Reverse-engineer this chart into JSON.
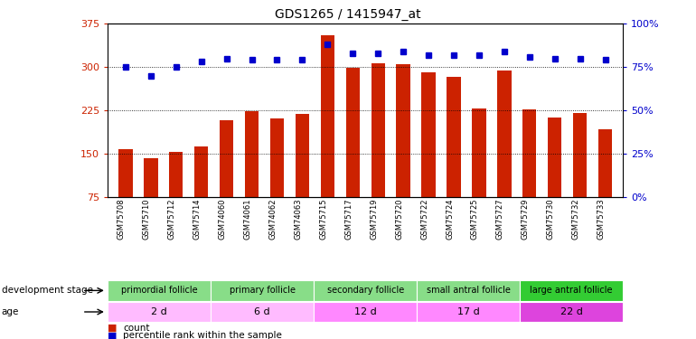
{
  "title": "GDS1265 / 1415947_at",
  "samples": [
    "GSM75708",
    "GSM75710",
    "GSM75712",
    "GSM75714",
    "GSM74060",
    "GSM74061",
    "GSM74062",
    "GSM74063",
    "GSM75715",
    "GSM75717",
    "GSM75719",
    "GSM75720",
    "GSM75722",
    "GSM75724",
    "GSM75725",
    "GSM75727",
    "GSM75729",
    "GSM75730",
    "GSM75732",
    "GSM75733"
  ],
  "counts": [
    157,
    142,
    153,
    162,
    207,
    223,
    210,
    218,
    355,
    299,
    307,
    305,
    291,
    283,
    228,
    294,
    227,
    213,
    220,
    192
  ],
  "percentiles": [
    75,
    70,
    75,
    78,
    80,
    79,
    79,
    79,
    88,
    83,
    83,
    84,
    82,
    82,
    82,
    84,
    81,
    80,
    80,
    79
  ],
  "ylim_left": [
    75,
    375
  ],
  "ylim_right": [
    0,
    100
  ],
  "yticks_left": [
    75,
    150,
    225,
    300,
    375
  ],
  "yticks_right": [
    0,
    25,
    50,
    75,
    100
  ],
  "bar_color": "#cc2200",
  "dot_color": "#0000cc",
  "tick_label_color_left": "#cc2200",
  "tick_label_color_right": "#0000cc",
  "stages": [
    {
      "label": "primordial follicle",
      "start": 0,
      "end": 4,
      "color": "#88dd88"
    },
    {
      "label": "primary follicle",
      "start": 4,
      "end": 8,
      "color": "#88dd88"
    },
    {
      "label": "secondary follicle",
      "start": 8,
      "end": 12,
      "color": "#88dd88"
    },
    {
      "label": "small antral follicle",
      "start": 12,
      "end": 16,
      "color": "#88dd88"
    },
    {
      "label": "large antral follicle",
      "start": 16,
      "end": 20,
      "color": "#33cc33"
    }
  ],
  "ages": [
    {
      "label": "2 d",
      "start": 0,
      "end": 4,
      "color": "#ffbbff"
    },
    {
      "label": "6 d",
      "start": 4,
      "end": 8,
      "color": "#ffbbff"
    },
    {
      "label": "12 d",
      "start": 8,
      "end": 12,
      "color": "#ff88ff"
    },
    {
      "label": "17 d",
      "start": 12,
      "end": 16,
      "color": "#ff88ff"
    },
    {
      "label": "22 d",
      "start": 16,
      "end": 20,
      "color": "#dd44dd"
    }
  ],
  "dev_stage_label": "development stage",
  "age_label": "age",
  "legend_count": "count",
  "legend_percentile": "percentile rank within the sample",
  "n_samples": 20,
  "xtick_bg_color": "#cccccc"
}
